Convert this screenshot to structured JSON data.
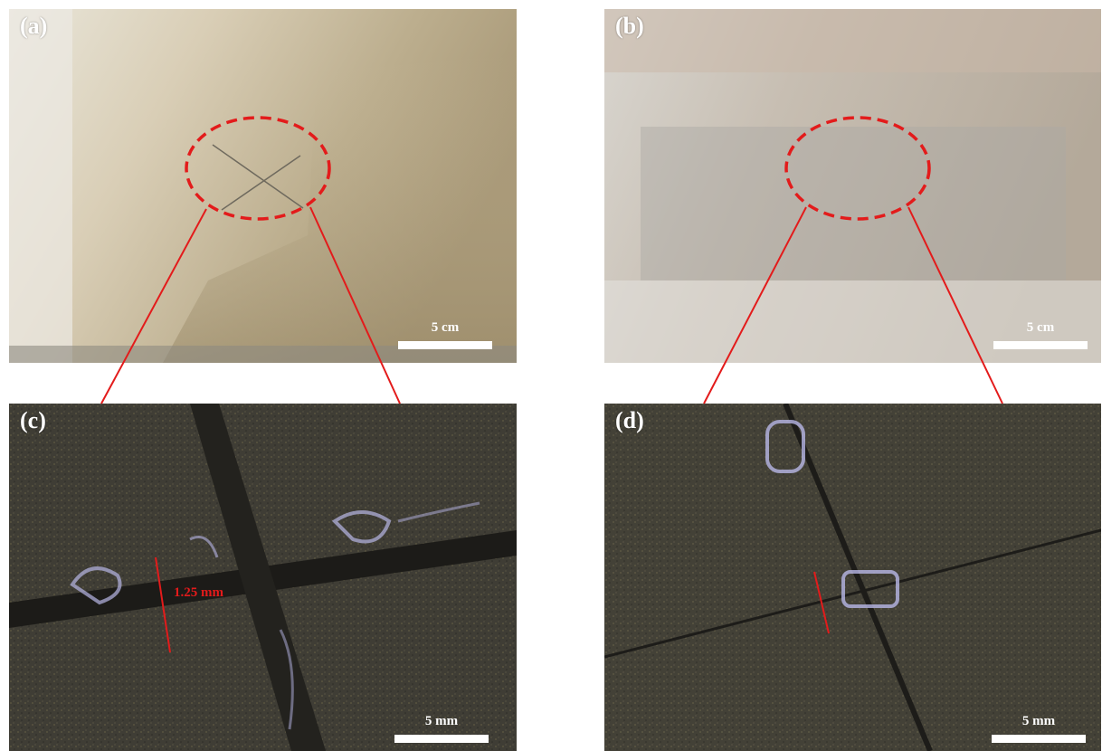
{
  "panels": {
    "a": {
      "label": "(a)",
      "scale": "5 cm"
    },
    "b": {
      "label": "(b)",
      "scale": "5 cm"
    },
    "c": {
      "label": "(c)",
      "scale": "5 mm",
      "measurement": "1.25 mm"
    },
    "d": {
      "label": "(d)",
      "scale": "5 mm"
    }
  },
  "colors": {
    "callout": "#e31b1b",
    "scalebar": "#ffffff"
  }
}
